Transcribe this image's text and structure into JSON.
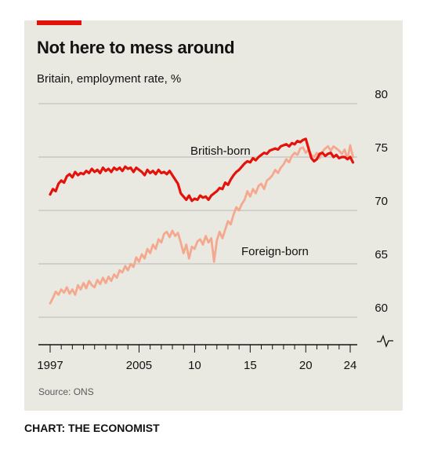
{
  "credit": "CHART: THE ECONOMIST",
  "colors": {
    "panel": "#e9e8e1",
    "accent": "#e3120b",
    "british": "#e3120b",
    "foreign": "#f4a98f",
    "grid": "#b7b7b7",
    "axis": "#121212"
  },
  "chart_data": {
    "type": "line",
    "title": "Not here to mess around",
    "subtitle": "Britain, employment rate, %",
    "source": "Source: ONS",
    "ylim": [
      60,
      80
    ],
    "y_ticks": [
      "60",
      "65",
      "70",
      "75",
      "80"
    ],
    "x_range": [
      1997,
      2024.5
    ],
    "x_ticks": [
      {
        "value": 1997,
        "label": "1997"
      },
      {
        "value": 2005,
        "label": "2005"
      },
      {
        "value": 2010,
        "label": "10"
      },
      {
        "value": 2015,
        "label": "15"
      },
      {
        "value": 2020,
        "label": "20"
      },
      {
        "value": 2024,
        "label": "24"
      }
    ],
    "grid": true,
    "axis_break": true,
    "series": [
      {
        "name": "British-born",
        "color": "#e3120b",
        "x": [
          1997,
          1997.25,
          1997.5,
          1997.75,
          1998,
          1998.25,
          1998.5,
          1998.75,
          1999,
          1999.25,
          1999.5,
          1999.75,
          2000,
          2000.25,
          2000.5,
          2000.75,
          2001,
          2001.25,
          2001.5,
          2001.75,
          2002,
          2002.25,
          2002.5,
          2002.75,
          2003,
          2003.25,
          2003.5,
          2003.75,
          2004,
          2004.25,
          2004.5,
          2004.75,
          2005,
          2005.25,
          2005.5,
          2005.75,
          2006,
          2006.25,
          2006.5,
          2006.75,
          2007,
          2007.25,
          2007.5,
          2007.75,
          2008,
          2008.25,
          2008.5,
          2008.75,
          2009,
          2009.25,
          2009.5,
          2009.75,
          2010,
          2010.25,
          2010.5,
          2010.75,
          2011,
          2011.25,
          2011.5,
          2011.75,
          2012,
          2012.25,
          2012.5,
          2012.75,
          2013,
          2013.25,
          2013.5,
          2013.75,
          2014,
          2014.25,
          2014.5,
          2014.75,
          2015,
          2015.25,
          2015.5,
          2015.75,
          2016,
          2016.25,
          2016.5,
          2016.75,
          2017,
          2017.25,
          2017.5,
          2017.75,
          2018,
          2018.25,
          2018.5,
          2018.75,
          2019,
          2019.25,
          2019.5,
          2019.75,
          2020,
          2020.25,
          2020.5,
          2020.75,
          2021,
          2021.25,
          2021.5,
          2021.75,
          2022,
          2022.25,
          2022.5,
          2022.75,
          2023,
          2023.25,
          2023.5,
          2023.75,
          2024,
          2024.25
        ],
        "values": [
          71.5,
          72.0,
          71.8,
          72.5,
          72.8,
          72.6,
          73.2,
          73.4,
          73.1,
          73.6,
          73.3,
          73.5,
          73.4,
          73.7,
          73.5,
          73.9,
          73.6,
          73.8,
          73.5,
          74.0,
          73.7,
          73.9,
          73.6,
          74.0,
          73.8,
          74.0,
          73.7,
          74.1,
          73.9,
          74.0,
          73.6,
          74.0,
          73.8,
          73.6,
          73.3,
          73.8,
          73.5,
          73.7,
          73.4,
          73.8,
          73.5,
          73.6,
          73.4,
          73.7,
          73.3,
          72.9,
          72.5,
          71.6,
          71.3,
          71.0,
          71.4,
          70.9,
          71.1,
          71.0,
          71.4,
          71.2,
          71.3,
          71.0,
          71.4,
          71.6,
          71.8,
          72.1,
          72.0,
          72.6,
          72.4,
          72.9,
          73.3,
          73.6,
          73.8,
          74.1,
          74.4,
          74.6,
          74.5,
          74.9,
          74.7,
          75.0,
          75.2,
          75.4,
          75.3,
          75.6,
          75.7,
          75.8,
          75.7,
          76.0,
          76.1,
          76.2,
          76.0,
          76.3,
          76.2,
          76.5,
          76.4,
          76.6,
          76.7,
          75.8,
          74.9,
          74.6,
          74.8,
          75.3,
          75.4,
          75.1,
          75.3,
          75.4,
          75.0,
          75.2,
          74.9,
          75.0,
          75.0,
          74.8,
          75.0,
          74.5
        ]
      },
      {
        "name": "Foreign-born",
        "color": "#f4a98f",
        "x": [
          1997,
          1997.25,
          1997.5,
          1997.75,
          1998,
          1998.25,
          1998.5,
          1998.75,
          1999,
          1999.25,
          1999.5,
          1999.75,
          2000,
          2000.25,
          2000.5,
          2000.75,
          2001,
          2001.25,
          2001.5,
          2001.75,
          2002,
          2002.25,
          2002.5,
          2002.75,
          2003,
          2003.25,
          2003.5,
          2003.75,
          2004,
          2004.25,
          2004.5,
          2004.75,
          2005,
          2005.25,
          2005.5,
          2005.75,
          2006,
          2006.25,
          2006.5,
          2006.75,
          2007,
          2007.25,
          2007.5,
          2007.75,
          2008,
          2008.25,
          2008.5,
          2008.75,
          2009,
          2009.25,
          2009.5,
          2009.75,
          2010,
          2010.25,
          2010.5,
          2010.75,
          2011,
          2011.25,
          2011.5,
          2011.75,
          2012,
          2012.25,
          2012.5,
          2012.75,
          2013,
          2013.25,
          2013.5,
          2013.75,
          2014,
          2014.25,
          2014.5,
          2014.75,
          2015,
          2015.25,
          2015.5,
          2015.75,
          2016,
          2016.25,
          2016.5,
          2016.75,
          2017,
          2017.25,
          2017.5,
          2017.75,
          2018,
          2018.25,
          2018.5,
          2018.75,
          2019,
          2019.25,
          2019.5,
          2019.75,
          2020,
          2020.25,
          2020.5,
          2020.75,
          2021,
          2021.25,
          2021.5,
          2021.75,
          2022,
          2022.25,
          2022.5,
          2022.75,
          2023,
          2023.25,
          2023.5,
          2023.75,
          2024,
          2024.25
        ],
        "values": [
          61.3,
          61.8,
          62.4,
          62.1,
          62.6,
          62.3,
          62.8,
          62.2,
          62.6,
          62.1,
          63.0,
          62.6,
          63.2,
          62.7,
          63.4,
          63.0,
          62.8,
          63.5,
          63.1,
          63.7,
          63.2,
          63.8,
          63.4,
          64.0,
          63.7,
          64.4,
          64.2,
          64.8,
          64.4,
          65.0,
          64.7,
          65.6,
          65.2,
          65.9,
          65.5,
          66.4,
          66.0,
          66.8,
          66.4,
          67.3,
          67.0,
          67.8,
          68.0,
          67.5,
          68.1,
          67.6,
          67.9,
          67.0,
          66.0,
          66.8,
          65.5,
          66.6,
          66.4,
          67.1,
          67.3,
          66.8,
          67.6,
          67.0,
          67.4,
          65.2,
          67.2,
          68.0,
          67.4,
          68.2,
          69.0,
          68.7,
          69.6,
          70.3,
          70.0,
          70.6,
          71.0,
          71.8,
          71.3,
          72.0,
          71.6,
          72.3,
          72.5,
          72.0,
          72.8,
          73.0,
          73.3,
          73.8,
          73.5,
          74.0,
          74.3,
          74.8,
          74.5,
          75.1,
          75.4,
          75.2,
          75.8,
          75.9,
          75.4,
          75.7,
          75.2,
          75.0,
          75.4,
          74.9,
          75.5,
          75.8,
          76.0,
          75.6,
          76.0,
          75.8,
          75.6,
          75.3,
          75.7,
          74.8,
          76.1,
          75.0
        ]
      }
    ],
    "annotations": [
      {
        "text": "British-born",
        "series": "British-born"
      },
      {
        "text": "Foreign-born",
        "series": "Foreign-born"
      }
    ]
  }
}
